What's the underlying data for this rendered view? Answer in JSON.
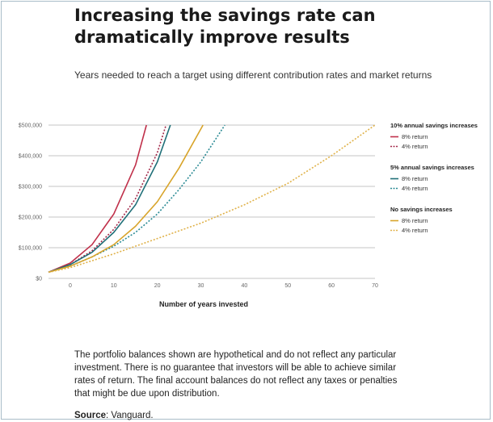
{
  "page": {
    "title": "Increasing the savings rate can dramatically improve results",
    "subtitle": "Years needed to reach a target using different contribution rates and market returns",
    "disclaimer": "The portfolio balances shown are hypothetical and do not reflect any particular investment. There is no guarantee that investors will be able to achieve similar rates of return. The final account balances do not reflect any taxes or penalties that might be due upon distribution.",
    "source_label": "Source",
    "source_value": ": Vanguard."
  },
  "chart_data": {
    "type": "line",
    "title": "Years needed to reach a target using different contribution rates and market returns",
    "xlabel": "Number of years invested",
    "ylabel": "",
    "xlim": [
      -5,
      70
    ],
    "ylim": [
      0,
      500000
    ],
    "x_ticks": [
      0,
      10,
      20,
      30,
      40,
      50,
      60,
      70
    ],
    "y_ticks": [
      0,
      100000,
      200000,
      300000,
      400000,
      500000
    ],
    "y_tick_labels": [
      "$0",
      "$100,000",
      "$200,000",
      "$300,000",
      "$400,000",
      "$500,000"
    ],
    "grid": "horizontal",
    "legend_position": "right",
    "legend_groups": [
      {
        "title": "10% annual savings increases",
        "series_indices": [
          0,
          1
        ]
      },
      {
        "title": "5% annual savings increases",
        "series_indices": [
          2,
          3
        ]
      },
      {
        "title": "No savings increases",
        "series_indices": [
          4,
          5
        ]
      }
    ],
    "series": [
      {
        "name": "8% return",
        "color": "#c0304a",
        "dashed": false,
        "x": [
          -5,
          0,
          5,
          10,
          15,
          17.5
        ],
        "y": [
          20000,
          50000,
          110000,
          210000,
          370000,
          500000
        ]
      },
      {
        "name": "4% return",
        "color": "#a3294a",
        "dashed": true,
        "x": [
          -5,
          0,
          5,
          10,
          15,
          20,
          22
        ],
        "y": [
          20000,
          45000,
          90000,
          160000,
          260000,
          410000,
          500000
        ]
      },
      {
        "name": "8% return",
        "color": "#1f6f78",
        "dashed": false,
        "x": [
          -5,
          0,
          5,
          10,
          15,
          20,
          23
        ],
        "y": [
          20000,
          45000,
          85000,
          150000,
          240000,
          380000,
          500000
        ]
      },
      {
        "name": "4% return",
        "color": "#2a8a94",
        "dashed": true,
        "x": [
          -5,
          0,
          5,
          10,
          15,
          20,
          25,
          30,
          35.5
        ],
        "y": [
          20000,
          40000,
          70000,
          105000,
          150000,
          210000,
          290000,
          380000,
          500000
        ]
      },
      {
        "name": "8% return",
        "color": "#d8a42a",
        "dashed": false,
        "x": [
          -5,
          0,
          5,
          10,
          15,
          20,
          25,
          30.5
        ],
        "y": [
          20000,
          40000,
          70000,
          110000,
          170000,
          250000,
          360000,
          500000
        ]
      },
      {
        "name": "4% return",
        "color": "#e0b24a",
        "dashed": true,
        "x": [
          -5,
          0,
          10,
          20,
          30,
          40,
          50,
          60,
          70
        ],
        "y": [
          20000,
          35000,
          80000,
          130000,
          180000,
          240000,
          310000,
          400000,
          500000
        ]
      }
    ]
  }
}
